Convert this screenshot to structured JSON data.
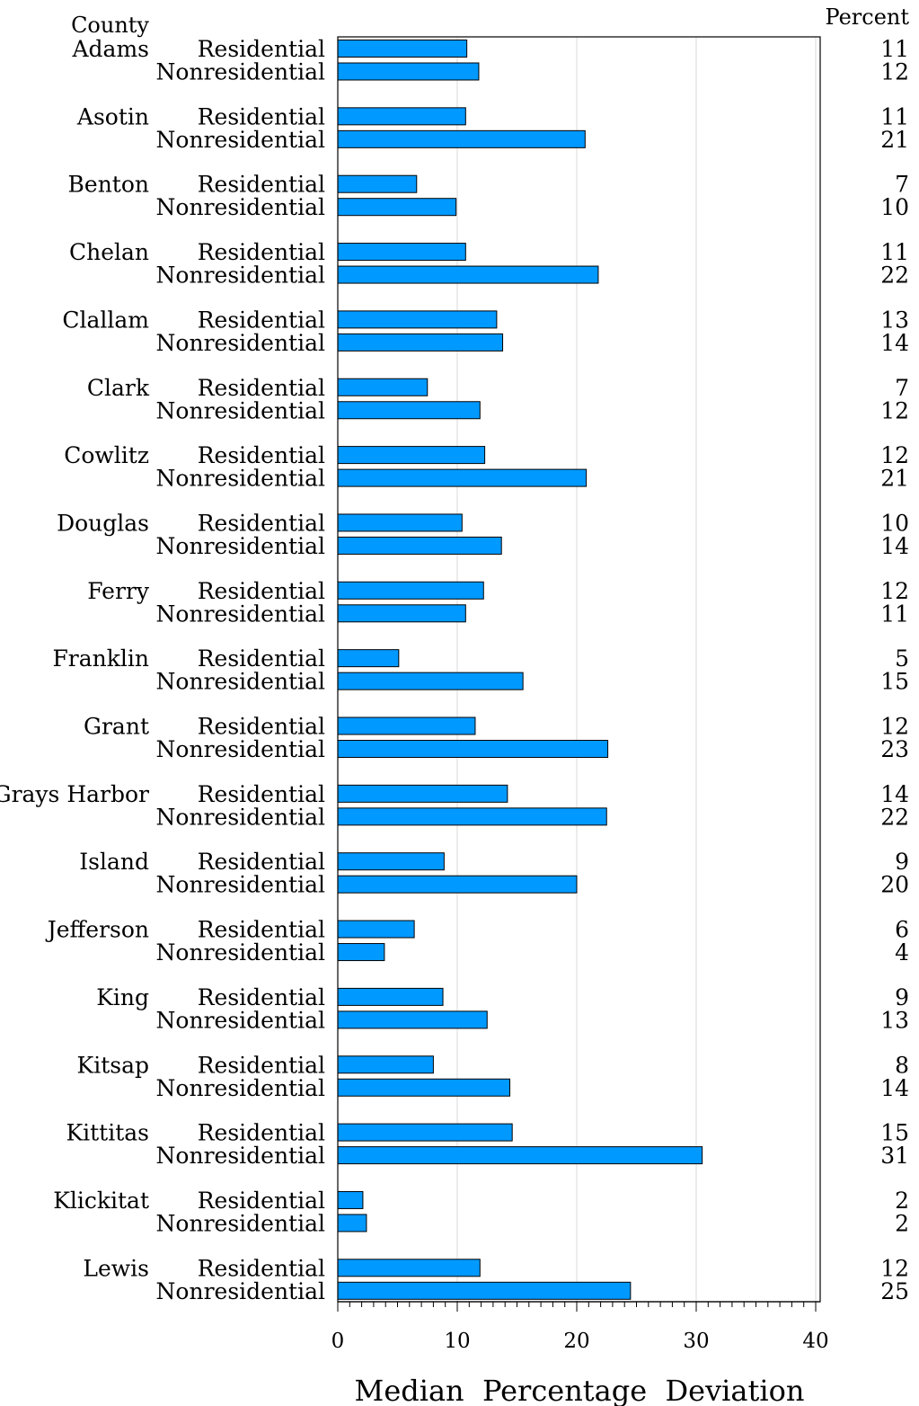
{
  "chart_data": {
    "type": "bar",
    "orientation": "horizontal",
    "county_header": "County",
    "value_header": "Percent",
    "xlabel": "Median  Percentage  Deviation",
    "xlim": [
      0,
      40
    ],
    "xticks": [
      0,
      10,
      20,
      30,
      40
    ],
    "grid": true,
    "bar_color": "#0099ff",
    "categories": [
      "Adams",
      "Asotin",
      "Benton",
      "Chelan",
      "Clallam",
      "Clark",
      "Cowlitz",
      "Douglas",
      "Ferry",
      "Franklin",
      "Grant",
      "Grays  Harbor",
      "Island",
      "Jefferson",
      "King",
      "Kitsap",
      "Kittitas",
      "Klickitat",
      "Lewis"
    ],
    "series": [
      {
        "name": "Residential",
        "values": [
          10.8,
          10.7,
          6.6,
          10.7,
          13.3,
          7.5,
          12.3,
          10.4,
          12.2,
          5.1,
          11.5,
          14.2,
          8.9,
          6.4,
          8.8,
          8.0,
          14.6,
          2.1,
          11.9
        ],
        "labels": [
          "11",
          "11",
          "7",
          "11",
          "13",
          "7",
          "12",
          "10",
          "12",
          "5",
          "12",
          "14",
          "9",
          "6",
          "9",
          "8",
          "15",
          "2",
          "12"
        ]
      },
      {
        "name": "Nonresidential",
        "values": [
          11.8,
          20.7,
          9.9,
          21.8,
          13.8,
          11.9,
          20.8,
          13.7,
          10.7,
          15.5,
          22.6,
          22.5,
          20.0,
          3.9,
          12.5,
          14.4,
          30.5,
          2.4,
          24.5
        ],
        "labels": [
          "12",
          "21",
          "10",
          "22",
          "14",
          "12",
          "21",
          "14",
          "11",
          "15",
          "23",
          "22",
          "20",
          "4",
          "13",
          "14",
          "31",
          "2",
          "25"
        ]
      }
    ]
  }
}
